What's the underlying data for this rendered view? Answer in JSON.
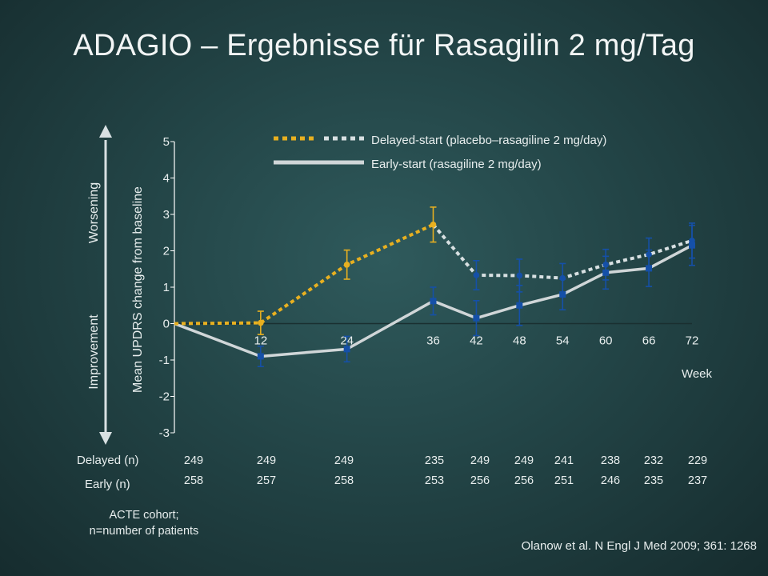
{
  "title": "ADAGIO – Ergebnisse für Rasagilin 2 mg/Tag",
  "labels": {
    "worsening": "Worsening",
    "improvement": "Improvement",
    "delayed_n": "Delayed (n)",
    "early_n": "Early (n)",
    "footnote_line1": "ACTE cohort;",
    "footnote_line2": "n=number of patients",
    "source": "Olanow et al. N Engl J Med 2009; 361: 1268"
  },
  "colors": {
    "delayed_placebo": "#e8b020",
    "delayed_rasagiline": "#d8e0e2",
    "early": "#d0d6d8",
    "marker_blue": "#1550a8",
    "marker_yellow": "#e8b020"
  },
  "chart_data": {
    "type": "line",
    "ylabel": "Mean UPDRS change from baseline",
    "xlabel": "Week",
    "ylim": [
      -3,
      5
    ],
    "yticks": [
      5,
      4,
      3,
      2,
      1,
      0,
      -1,
      -2,
      -3
    ],
    "yticklabels": [
      "5",
      "4",
      "3",
      "2",
      "1",
      "0",
      "-1",
      "-2",
      "-3"
    ],
    "xticks": [
      12,
      24,
      36,
      42,
      48,
      54,
      60,
      66,
      72
    ],
    "xticklabels": [
      "12",
      "24",
      "36",
      "42",
      "48",
      "54",
      "60",
      "66",
      "72"
    ],
    "xlim": [
      0,
      72
    ],
    "legend": {
      "position": "top-center",
      "entries": [
        "Delayed-start (placebo–rasagiline 2 mg/day)",
        "Early-start (rasagiline 2 mg/day)"
      ]
    },
    "series": [
      {
        "name": "Delayed-start (placebo–rasagiline 2 mg/day)",
        "style": "dotted",
        "x": [
          0,
          12,
          24,
          36,
          42,
          48,
          54,
          60,
          66,
          72
        ],
        "y": [
          0,
          0.02,
          1.62,
          2.72,
          1.33,
          1.32,
          1.25,
          1.62,
          1.9,
          2.28
        ],
        "err": [
          0,
          0.32,
          0.4,
          0.48,
          0.4,
          0.45,
          0.4,
          0.42,
          0.45,
          0.48
        ],
        "placebo_until_x": 36
      },
      {
        "name": "Early-start (rasagiline 2 mg/day)",
        "style": "solid",
        "x": [
          0,
          12,
          24,
          36,
          42,
          48,
          54,
          60,
          66,
          72
        ],
        "y": [
          0,
          -0.9,
          -0.7,
          0.62,
          0.15,
          0.5,
          0.8,
          1.4,
          1.52,
          2.15
        ],
        "err": [
          0,
          0.28,
          0.35,
          0.38,
          0.48,
          0.55,
          0.42,
          0.45,
          0.5,
          0.55
        ]
      }
    ],
    "counts": {
      "x": [
        0,
        12,
        24,
        36,
        42,
        48,
        54,
        60,
        66,
        72
      ],
      "delayed": [
        "249",
        "249",
        "249",
        "235",
        "249",
        "249",
        "241",
        "238",
        "232",
        "229"
      ],
      "early": [
        "258",
        "257",
        "258",
        "253",
        "256",
        "256",
        "251",
        "246",
        "235",
        "237"
      ]
    }
  }
}
